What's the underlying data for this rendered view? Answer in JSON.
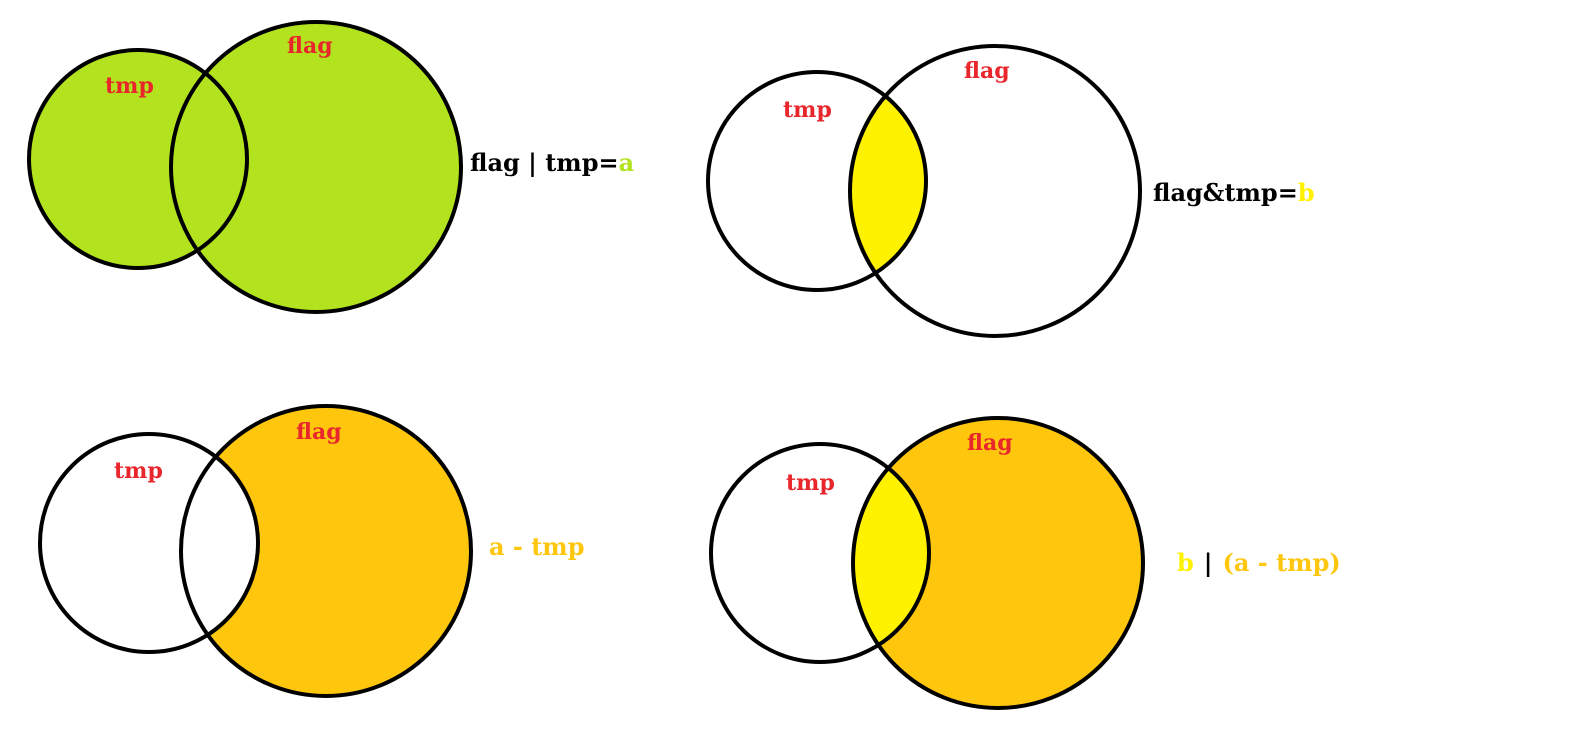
{
  "colors": {
    "green": "#b3e31e",
    "yellow": "#fff200",
    "orange": "#ffc60e",
    "outline": "#000000",
    "set_label": "#e8262b",
    "text": "#000000"
  },
  "panels": [
    {
      "set_labels": {
        "tmp": "tmp",
        "flag": "flag"
      },
      "caption": {
        "main": "flag | tmp=",
        "var": "a"
      },
      "fill": "union"
    },
    {
      "set_labels": {
        "tmp": "tmp",
        "flag": "flag"
      },
      "caption": {
        "main": "flag&tmp=",
        "var": "b"
      },
      "fill": "intersection"
    },
    {
      "set_labels": {
        "tmp": "tmp",
        "flag": "flag"
      },
      "caption": {
        "expr": "a - tmp"
      },
      "fill": "flag-minus-tmp"
    },
    {
      "set_labels": {
        "tmp": "tmp",
        "flag": "flag"
      },
      "caption": {
        "var": "b",
        "sep": "|",
        "expr": "(a - tmp)"
      },
      "fill": "flag-with-intersection"
    }
  ]
}
